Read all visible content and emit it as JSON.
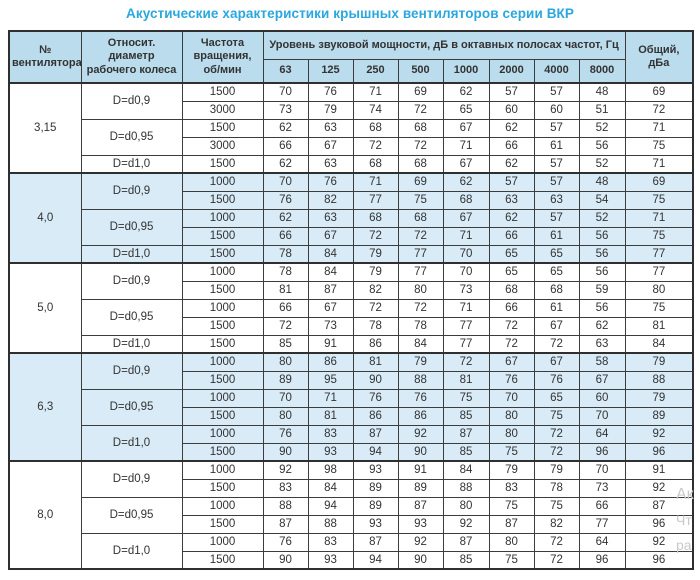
{
  "title": "Акустические характеристики крышных вентиляторов серии ВКР",
  "colors": {
    "title_text": "#29a7de",
    "header_bg": "#badced",
    "shaded_group_bg": "#d8ebf7",
    "border": "#3c3c3c",
    "text": "#333333"
  },
  "watermark": {
    "fragments": [
      "Ак",
      "Чт",
      "ра"
    ]
  },
  "table": {
    "headers": {
      "fan_no": "№ вентилятора",
      "rel_diameter": "Относит. диаметр рабочего колеса",
      "speed": "Частота вращения, об/мин",
      "spl_group": "Уровень звуковой мощности, дБ в октавных полосах частот, Гц",
      "octaves": [
        "63",
        "125",
        "250",
        "500",
        "1000",
        "2000",
        "4000",
        "8000"
      ],
      "total": "Общий, дБа"
    },
    "groups": [
      {
        "fan": "3,15",
        "shaded": false,
        "subgroups": [
          {
            "diameter": "D=d0,9",
            "rows": [
              {
                "speed": "1500",
                "values": [
                  70,
                  76,
                  71,
                  69,
                  62,
                  57,
                  57,
                  48
                ],
                "total": 69
              },
              {
                "speed": "3000",
                "values": [
                  73,
                  79,
                  74,
                  72,
                  65,
                  60,
                  60,
                  51
                ],
                "total": 72
              }
            ]
          },
          {
            "diameter": "D=d0,95",
            "rows": [
              {
                "speed": "1500",
                "values": [
                  62,
                  63,
                  68,
                  68,
                  67,
                  62,
                  57,
                  52
                ],
                "total": 71
              },
              {
                "speed": "3000",
                "values": [
                  66,
                  67,
                  72,
                  72,
                  71,
                  66,
                  61,
                  56
                ],
                "total": 75
              }
            ]
          },
          {
            "diameter": "D=d1,0",
            "rows": [
              {
                "speed": "1500",
                "values": [
                  62,
                  63,
                  68,
                  68,
                  67,
                  62,
                  57,
                  52
                ],
                "total": 71
              }
            ]
          }
        ]
      },
      {
        "fan": "4,0",
        "shaded": true,
        "subgroups": [
          {
            "diameter": "D=d0,9",
            "rows": [
              {
                "speed": "1000",
                "values": [
                  70,
                  76,
                  71,
                  69,
                  62,
                  57,
                  57,
                  48
                ],
                "total": 69
              },
              {
                "speed": "1500",
                "values": [
                  76,
                  82,
                  77,
                  75,
                  68,
                  63,
                  63,
                  54
                ],
                "total": 75
              }
            ]
          },
          {
            "diameter": "D=d0,95",
            "rows": [
              {
                "speed": "1000",
                "values": [
                  62,
                  63,
                  68,
                  68,
                  67,
                  62,
                  57,
                  52
                ],
                "total": 71
              },
              {
                "speed": "1500",
                "values": [
                  66,
                  67,
                  72,
                  72,
                  71,
                  66,
                  61,
                  56
                ],
                "total": 75
              }
            ]
          },
          {
            "diameter": "D=d1,0",
            "rows": [
              {
                "speed": "1500",
                "values": [
                  78,
                  84,
                  79,
                  77,
                  70,
                  65,
                  65,
                  56
                ],
                "total": 77
              }
            ]
          }
        ]
      },
      {
        "fan": "5,0",
        "shaded": false,
        "subgroups": [
          {
            "diameter": "D=d0,9",
            "rows": [
              {
                "speed": "1000",
                "values": [
                  78,
                  84,
                  79,
                  77,
                  70,
                  65,
                  65,
                  56
                ],
                "total": 77
              },
              {
                "speed": "1500",
                "values": [
                  81,
                  87,
                  82,
                  80,
                  73,
                  68,
                  68,
                  59
                ],
                "total": 80
              }
            ]
          },
          {
            "diameter": "D=d0,95",
            "rows": [
              {
                "speed": "1000",
                "values": [
                  66,
                  67,
                  72,
                  72,
                  71,
                  66,
                  61,
                  56
                ],
                "total": 75
              },
              {
                "speed": "1500",
                "values": [
                  72,
                  73,
                  78,
                  78,
                  77,
                  72,
                  67,
                  62
                ],
                "total": 81
              }
            ]
          },
          {
            "diameter": "D=d1,0",
            "rows": [
              {
                "speed": "1500",
                "values": [
                  85,
                  91,
                  86,
                  84,
                  77,
                  72,
                  72,
                  63
                ],
                "total": 84
              }
            ]
          }
        ]
      },
      {
        "fan": "6,3",
        "shaded": true,
        "subgroups": [
          {
            "diameter": "D=d0,9",
            "rows": [
              {
                "speed": "1000",
                "values": [
                  80,
                  86,
                  81,
                  79,
                  72,
                  67,
                  67,
                  58
                ],
                "total": 79
              },
              {
                "speed": "1500",
                "values": [
                  89,
                  95,
                  90,
                  88,
                  81,
                  76,
                  76,
                  67
                ],
                "total": 88
              }
            ]
          },
          {
            "diameter": "D=d0,95",
            "rows": [
              {
                "speed": "1000",
                "values": [
                  70,
                  71,
                  76,
                  76,
                  75,
                  70,
                  65,
                  60
                ],
                "total": 79
              },
              {
                "speed": "1500",
                "values": [
                  80,
                  81,
                  86,
                  86,
                  85,
                  80,
                  75,
                  70
                ],
                "total": 89
              }
            ]
          },
          {
            "diameter": "D=d1,0",
            "rows": [
              {
                "speed": "1000",
                "values": [
                  76,
                  83,
                  87,
                  92,
                  87,
                  80,
                  72,
                  64
                ],
                "total": 92
              },
              {
                "speed": "1500",
                "values": [
                  90,
                  93,
                  94,
                  90,
                  85,
                  75,
                  72,
                  96
                ],
                "total": 96
              }
            ]
          }
        ]
      },
      {
        "fan": "8,0",
        "shaded": false,
        "subgroups": [
          {
            "diameter": "D=d0,9",
            "rows": [
              {
                "speed": "1000",
                "values": [
                  92,
                  98,
                  93,
                  91,
                  84,
                  79,
                  79,
                  70
                ],
                "total": 91
              },
              {
                "speed": "1500",
                "values": [
                  83,
                  84,
                  89,
                  89,
                  88,
                  83,
                  78,
                  73
                ],
                "total": 92
              }
            ]
          },
          {
            "diameter": "D=d0,95",
            "rows": [
              {
                "speed": "1000",
                "values": [
                  88,
                  94,
                  89,
                  87,
                  80,
                  75,
                  75,
                  66
                ],
                "total": 87
              },
              {
                "speed": "1500",
                "values": [
                  87,
                  88,
                  93,
                  93,
                  92,
                  87,
                  82,
                  77
                ],
                "total": 96
              }
            ]
          },
          {
            "diameter": "D=d1,0",
            "rows": [
              {
                "speed": "1000",
                "values": [
                  76,
                  83,
                  87,
                  92,
                  87,
                  80,
                  72,
                  64
                ],
                "total": 92
              },
              {
                "speed": "1500",
                "values": [
                  90,
                  93,
                  94,
                  90,
                  85,
                  75,
                  72,
                  96
                ],
                "total": 96
              }
            ]
          }
        ]
      }
    ]
  }
}
